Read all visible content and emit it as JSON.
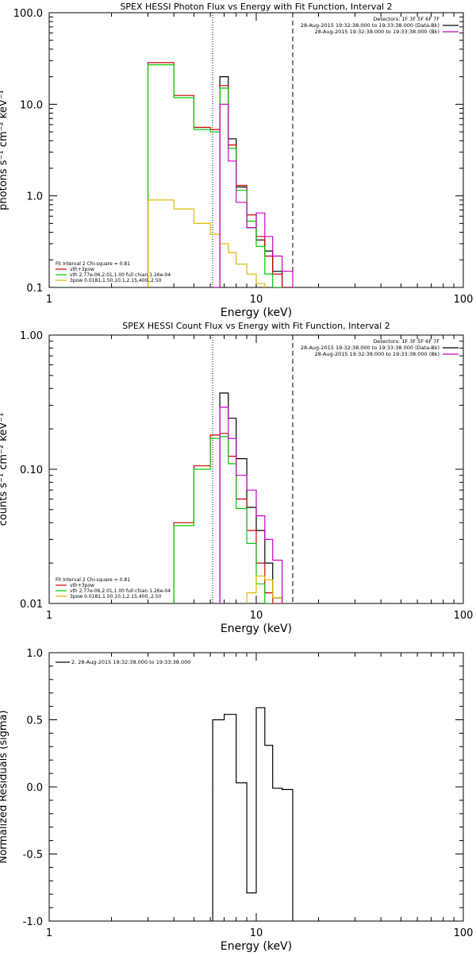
{
  "chart_data": [
    {
      "type": "line",
      "title": "SPEX HESSI Photon Flux vs Energy with Fit Function, Interval 2",
      "xlabel": "Energy (keV)",
      "ylabel": "photons s⁻¹ cm⁻² keV⁻¹",
      "xscale": "log",
      "yscale": "log",
      "xlim": [
        1,
        100
      ],
      "ylim": [
        0.1,
        100
      ],
      "x_ticks": [
        "1",
        "10",
        "100"
      ],
      "y_ticks": [
        "0.1",
        "1.0",
        "10.0",
        "100.0"
      ],
      "legend_right": [
        "Detectors: 1F 3F 5F 6F 7F",
        "28-Aug-2015 19:32:38.000 to 19:33:38.000 (Data-Bk)",
        "28-Aug-2015 19:32:38.000 to 19:33:38.000 (Bk)"
      ],
      "legend_left": [
        "Fit Interval 2   Chi-square = 0.81",
        "vth+3pow",
        "vth 2.77e-06,2.01,1.00  full chian 1.26e-04",
        "3pow 0.0181,1.50,10.1,2.15,400.,2.50"
      ],
      "vlines": [
        {
          "x": 6.16,
          "style": "dotted"
        },
        {
          "x": 15.0,
          "style": "dashed"
        }
      ],
      "bin_edges": [
        3.0,
        4.0,
        5.0,
        6.0,
        6.67,
        7.33,
        8.0,
        9.0,
        10.0,
        11.0,
        12.0,
        13.33,
        15.0
      ],
      "series": [
        {
          "key": "data",
          "color": "#000000",
          "start_bin": 4,
          "values": [
            20.0,
            4.2,
            1.25,
            0.45,
            0.33,
            0.25,
            0.15,
            0.1
          ]
        },
        {
          "key": "total_fit",
          "color": "#cc0000",
          "start_bin": 0,
          "values": [
            28.5,
            12.5,
            5.6,
            5.3,
            16.0,
            3.6,
            1.3,
            0.62,
            0.36,
            0.22,
            0.14,
            0.1
          ]
        },
        {
          "key": "thermal",
          "color": "#00cc00",
          "start_bin": 0,
          "values": [
            27.0,
            11.8,
            5.3,
            5.0,
            15.0,
            3.3,
            1.15,
            0.53,
            0.28,
            0.14,
            0.1
          ]
        },
        {
          "key": "nonthermal",
          "color": "#ddbb00",
          "start_bin": 0,
          "values": [
            0.9,
            0.72,
            0.5,
            0.38,
            0.3,
            0.24,
            0.18,
            0.14,
            0.11
          ]
        },
        {
          "key": "background",
          "color": "#cc00cc",
          "start_bin": 3,
          "values": [
            0.1,
            10.0,
            2.4,
            0.85,
            0.45,
            0.65,
            0.36,
            0.22,
            0.15
          ]
        }
      ]
    },
    {
      "type": "line",
      "title": "SPEX HESSI Count Flux vs Energy with Fit Function, Interval 2",
      "xlabel": "Energy (keV)",
      "ylabel": "counts s⁻¹ cm⁻² keV⁻¹",
      "xscale": "log",
      "yscale": "log",
      "xlim": [
        1,
        100
      ],
      "ylim": [
        0.01,
        1.0
      ],
      "x_ticks": [
        "1",
        "10",
        "100"
      ],
      "y_ticks": [
        "0.01",
        "0.10",
        "1.00"
      ],
      "legend_right": [
        "Detectors: 1F 3F 5F 6F 7F",
        "28-Aug-2015 19:32:38.000 to 19:33:38.000 (Data-Bk)",
        "28-Aug-2015 19:32:38.000 to 19:33:38.000 (Bk)"
      ],
      "legend_left": [
        "Fit Interval 2   Chi-square = 0.81",
        "vth+3pow",
        "vth 2.77e-06,2.01,1.00  full chian 1.26e-04",
        "3pow 0.0181,1.50,10.1,2.15,400.,2.50"
      ],
      "vlines": [
        {
          "x": 6.16,
          "style": "dotted"
        },
        {
          "x": 15.0,
          "style": "dashed"
        }
      ],
      "bin_edges": [
        3.0,
        4.0,
        5.0,
        6.0,
        6.67,
        7.33,
        8.0,
        9.0,
        10.0,
        11.0,
        12.0,
        13.33,
        15.0
      ],
      "series": [
        {
          "key": "data",
          "color": "#000000",
          "start_bin": 4,
          "values": [
            0.37,
            0.24,
            0.12,
            0.052,
            0.035,
            0.02,
            0.011
          ]
        },
        {
          "key": "total_fit",
          "color": "#cc0000",
          "start_bin": 1,
          "values": [
            0.04,
            0.106,
            0.18,
            0.185,
            0.125,
            0.06,
            0.035,
            0.02,
            0.012,
            0.01
          ]
        },
        {
          "key": "thermal",
          "color": "#00cc00",
          "start_bin": 1,
          "values": [
            0.038,
            0.1,
            0.17,
            0.175,
            0.11,
            0.051,
            0.028,
            0.014,
            0.01
          ]
        },
        {
          "key": "nonthermal",
          "color": "#ddbb00",
          "start_bin": 7,
          "values": [
            0.012,
            0.016,
            0.015,
            0.011
          ]
        },
        {
          "key": "background",
          "color": "#cc00cc",
          "start_bin": 4,
          "values": [
            0.29,
            0.17,
            0.09,
            0.07,
            0.045,
            0.03,
            0.021
          ]
        }
      ]
    },
    {
      "type": "line",
      "title": "",
      "xlabel": "Energy (keV)",
      "ylabel": "Normalized Residuals (sigma)",
      "xscale": "log",
      "yscale": "linear",
      "xlim": [
        1,
        100
      ],
      "ylim": [
        -1.0,
        1.0
      ],
      "x_ticks": [
        "1",
        "10",
        "100"
      ],
      "y_ticks": [
        "-1.0",
        "-0.5",
        "0.0",
        "0.5",
        "1.0"
      ],
      "legend_left": [
        "2. 28-Aug-2015 19:32:38.000 to 19:33:38.000"
      ],
      "bin_edges": [
        6.16,
        7.0,
        8.0,
        9.0,
        10.0,
        11.0,
        12.0,
        13.33,
        15.0
      ],
      "series": [
        {
          "key": "residuals",
          "color": "#000000",
          "start_bin": 0,
          "values": [
            0.5,
            0.54,
            0.03,
            -0.79,
            0.59,
            0.31,
            -0.01,
            -0.02
          ]
        }
      ]
    }
  ]
}
